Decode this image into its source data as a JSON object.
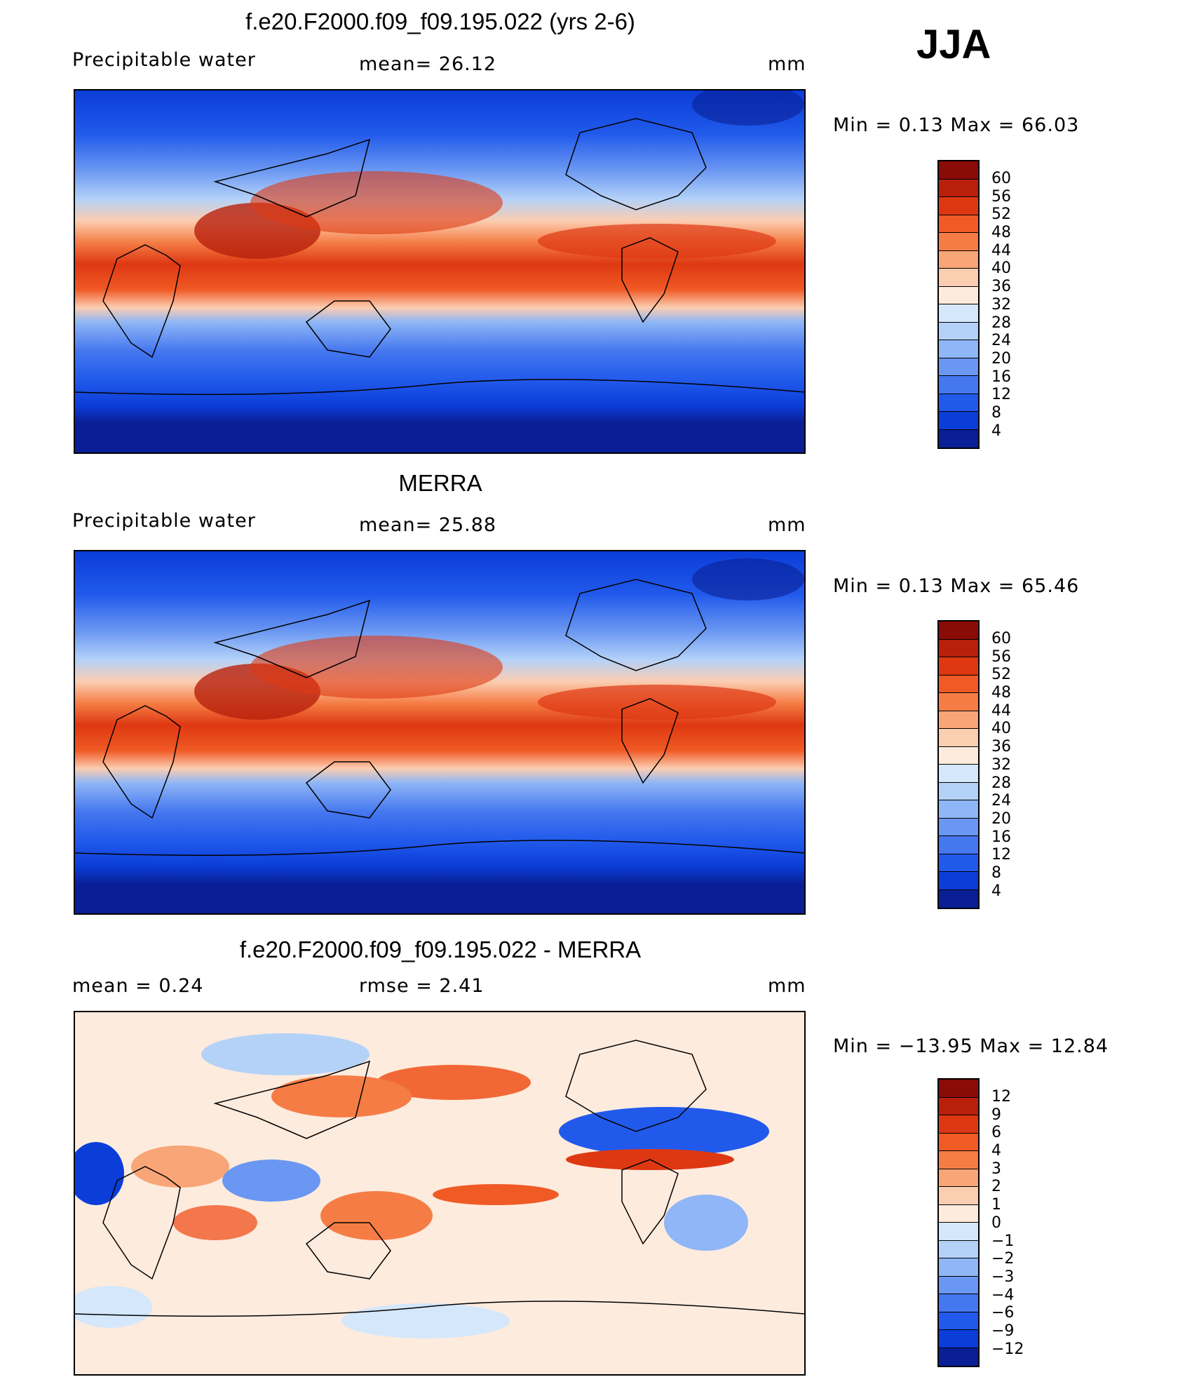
{
  "season": "JJA",
  "panels": [
    {
      "id": "model",
      "title": "f.e20.F2000.f09_f09.195.022 (yrs 2-6)",
      "left_label": "Precipitable  water",
      "center_label": "mean=   26.12",
      "units": "mm",
      "minmax": "Min  =     0.13  Max  =    66.03",
      "colorbar": {
        "ticks": [
          "60",
          "56",
          "52",
          "48",
          "44",
          "40",
          "36",
          "32",
          "28",
          "24",
          "20",
          "16",
          "12",
          "8",
          "4"
        ],
        "colors": [
          "#8b0b06",
          "#b8200c",
          "#de3812",
          "#f05a24",
          "#f57d45",
          "#f8a577",
          "#fbcdb1",
          "#fdebde",
          "#d5e7fa",
          "#b4d2f8",
          "#8fb6f6",
          "#6a97f2",
          "#4577ef",
          "#215aeb",
          "#0b3dd8",
          "#0a1f95"
        ]
      }
    },
    {
      "id": "obs",
      "title": "MERRA",
      "left_label": "Precipitable  water",
      "center_label": "mean=   25.88",
      "units": "mm",
      "minmax": "Min  =     0.13  Max  =    65.46",
      "colorbar": {
        "ticks": [
          "60",
          "56",
          "52",
          "48",
          "44",
          "40",
          "36",
          "32",
          "28",
          "24",
          "20",
          "16",
          "12",
          "8",
          "4"
        ],
        "colors": [
          "#8b0b06",
          "#b8200c",
          "#de3812",
          "#f05a24",
          "#f57d45",
          "#f8a577",
          "#fbcdb1",
          "#fdebde",
          "#d5e7fa",
          "#b4d2f8",
          "#8fb6f6",
          "#6a97f2",
          "#4577ef",
          "#215aeb",
          "#0b3dd8",
          "#0a1f95"
        ]
      }
    },
    {
      "id": "diff",
      "title": "f.e20.F2000.f09_f09.195.022 - MERRA",
      "left_label": "mean  =     0.24",
      "center_label": "rmse  =     2.41",
      "units": "mm",
      "minmax": "Min  = −13.95  Max  =    12.84",
      "colorbar": {
        "ticks": [
          "12",
          "9",
          "6",
          "4",
          "3",
          "2",
          "1",
          "0",
          "−1",
          "−2",
          "−3",
          "−4",
          "−6",
          "−9",
          "−12"
        ],
        "colors": [
          "#8b0b06",
          "#b8200c",
          "#de3812",
          "#f05a24",
          "#f57d45",
          "#f8a577",
          "#fbcdb1",
          "#fdebde",
          "#d5e7fa",
          "#b4d2f8",
          "#8fb6f6",
          "#6a97f2",
          "#4577ef",
          "#215aeb",
          "#0b3dd8",
          "#0a1f95"
        ]
      }
    }
  ]
}
